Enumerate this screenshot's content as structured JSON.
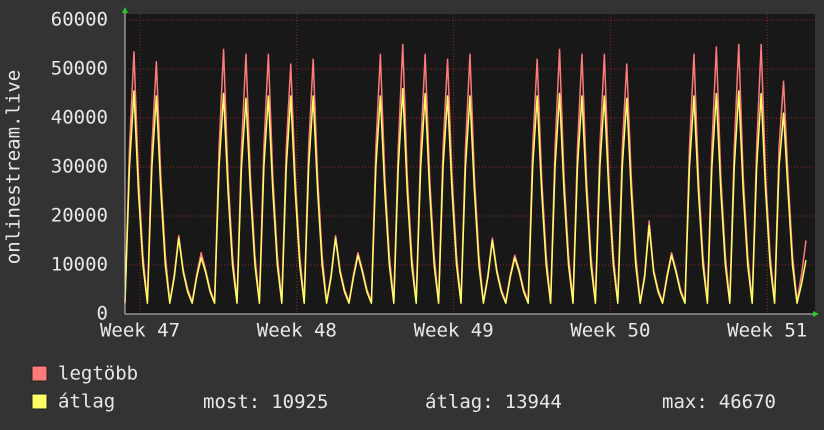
{
  "chart_data": {
    "type": "line",
    "ylabel": "onlinestream.live",
    "x": [
      0,
      0.2,
      0.4,
      0.6,
      0.8,
      1,
      1.2,
      1.4,
      1.6,
      1.8,
      2,
      2.2,
      2.4,
      2.6,
      2.8,
      3,
      3.2,
      3.4,
      3.6,
      3.8,
      4,
      4.2,
      4.4,
      4.6,
      4.8,
      5,
      5.2,
      5.4,
      5.6,
      5.8,
      6,
      6.2,
      6.4,
      6.6,
      6.8,
      7,
      7.2,
      7.4,
      7.6,
      7.8,
      8,
      8.2,
      8.4,
      8.6,
      8.8,
      9,
      9.2,
      9.4,
      9.6,
      9.8,
      10,
      10.2,
      10.4,
      10.6,
      10.8,
      11,
      11.2,
      11.4,
      11.6,
      11.8,
      12,
      12.2,
      12.4,
      12.6,
      12.8,
      13,
      13.2,
      13.4,
      13.6,
      13.8,
      14,
      14.2,
      14.4,
      14.6,
      14.8,
      15,
      15.2,
      15.4,
      15.6,
      15.8,
      16,
      16.2,
      16.4,
      16.6,
      16.8,
      17,
      17.2,
      17.4,
      17.6,
      17.8,
      18,
      18.2,
      18.4,
      18.6,
      18.8,
      19,
      19.2,
      19.4,
      19.6,
      19.8,
      20,
      20.2,
      20.4,
      20.6,
      20.8,
      21,
      21.2,
      21.4,
      21.6,
      21.8,
      22,
      22.2,
      22.4,
      22.6,
      22.8,
      23,
      23.2,
      23.4,
      23.6,
      23.8,
      24,
      24.2,
      24.4,
      24.6,
      24.8,
      25,
      25.2,
      25.4,
      25.6,
      25.8,
      26,
      26.2,
      26.4,
      26.6,
      26.8,
      27,
      27.2,
      27.4,
      27.6,
      27.8,
      28,
      28.2,
      28.4,
      28.6,
      28.8,
      29,
      29.2,
      29.4,
      29.6,
      29.8,
      30,
      30.2,
      30.4
    ],
    "series": [
      {
        "name": "legtöbb",
        "color": "#ff7a7a",
        "values": [
          2500,
          34000,
          53500,
          28000,
          12000,
          2500,
          34000,
          51500,
          28000,
          12000,
          2500,
          8000,
          16000,
          9000,
          5000,
          2500,
          8000,
          12500,
          9000,
          5000,
          2500,
          34000,
          54000,
          28000,
          12000,
          2500,
          34000,
          53000,
          28000,
          12000,
          2500,
          34000,
          53000,
          28000,
          12000,
          2500,
          34000,
          51000,
          28000,
          12000,
          2500,
          34000,
          52000,
          28000,
          12000,
          2500,
          8000,
          16000,
          9000,
          5000,
          2500,
          8000,
          12500,
          9000,
          5000,
          2500,
          34000,
          53000,
          28000,
          12000,
          2500,
          34000,
          55000,
          28000,
          12000,
          2500,
          34000,
          53000,
          28000,
          12000,
          2500,
          34000,
          52000,
          28000,
          12000,
          2500,
          34000,
          53000,
          28000,
          12000,
          2500,
          8000,
          15500,
          9000,
          5000,
          2500,
          8000,
          12000,
          9000,
          5000,
          2500,
          34000,
          52000,
          28000,
          12000,
          2500,
          34000,
          54000,
          28000,
          12000,
          2500,
          34000,
          53000,
          28000,
          12000,
          2500,
          34000,
          53000,
          28000,
          12000,
          2500,
          34000,
          51000,
          28000,
          12000,
          2500,
          8000,
          19000,
          9000,
          5000,
          2500,
          8000,
          12500,
          9000,
          5000,
          2500,
          34000,
          53000,
          28000,
          12000,
          2500,
          34000,
          54500,
          28000,
          12000,
          2500,
          34000,
          55000,
          28000,
          12000,
          2500,
          34000,
          55000,
          28000,
          12000,
          2500,
          34000,
          47500,
          28000,
          12000,
          2500,
          8000,
          15000
        ]
      },
      {
        "name": "átlag",
        "color": "#ffff66",
        "values": [
          2200,
          30000,
          45500,
          25000,
          10000,
          2200,
          30000,
          44500,
          25000,
          10000,
          2200,
          7500,
          15500,
          8500,
          4500,
          2200,
          7500,
          11500,
          8500,
          4500,
          2200,
          30000,
          45000,
          25000,
          10000,
          2200,
          30000,
          44000,
          25000,
          10000,
          2200,
          30000,
          44500,
          25000,
          10000,
          2200,
          30000,
          44500,
          25000,
          10000,
          2200,
          30000,
          44500,
          25000,
          10000,
          2200,
          7500,
          15500,
          8500,
          4500,
          2200,
          7500,
          12000,
          8500,
          4500,
          2200,
          30000,
          44500,
          25000,
          10000,
          2200,
          30000,
          46000,
          25000,
          10000,
          2200,
          30000,
          45000,
          25000,
          10000,
          2200,
          30000,
          44500,
          25000,
          10000,
          2200,
          30000,
          44500,
          25000,
          10000,
          2200,
          7500,
          15000,
          8500,
          4500,
          2200,
          7500,
          11500,
          8500,
          4500,
          2200,
          30000,
          44500,
          25000,
          10000,
          2200,
          30000,
          45000,
          25000,
          10000,
          2200,
          30000,
          44500,
          25000,
          10000,
          2200,
          30000,
          44500,
          25000,
          10000,
          2200,
          30000,
          44000,
          25000,
          10000,
          2200,
          7500,
          18000,
          8500,
          4500,
          2200,
          7500,
          12000,
          8500,
          4500,
          2200,
          30000,
          44500,
          25000,
          10000,
          2200,
          30000,
          45000,
          25000,
          10000,
          2200,
          30000,
          45500,
          25000,
          10000,
          2200,
          30000,
          45000,
          25000,
          10000,
          2200,
          30000,
          41000,
          25000,
          10000,
          2200,
          6000,
          11000
        ]
      }
    ],
    "xlim": [
      0,
      30.67
    ],
    "xticks": [
      {
        "value": 0.67,
        "label": "Week 47"
      },
      {
        "value": 7.67,
        "label": "Week 48"
      },
      {
        "value": 14.67,
        "label": "Week 49"
      },
      {
        "value": 21.67,
        "label": "Week 50"
      },
      {
        "value": 28.67,
        "label": "Week 51"
      }
    ],
    "ylim": [
      0,
      60000
    ],
    "yticks": [
      0,
      10000,
      20000,
      30000,
      40000,
      50000,
      60000
    ],
    "grid": true,
    "stats": [
      {
        "label": "most:",
        "value": 10925
      },
      {
        "label": "átlag:",
        "value": 13944
      },
      {
        "label": "max:",
        "value": 46670
      }
    ]
  }
}
